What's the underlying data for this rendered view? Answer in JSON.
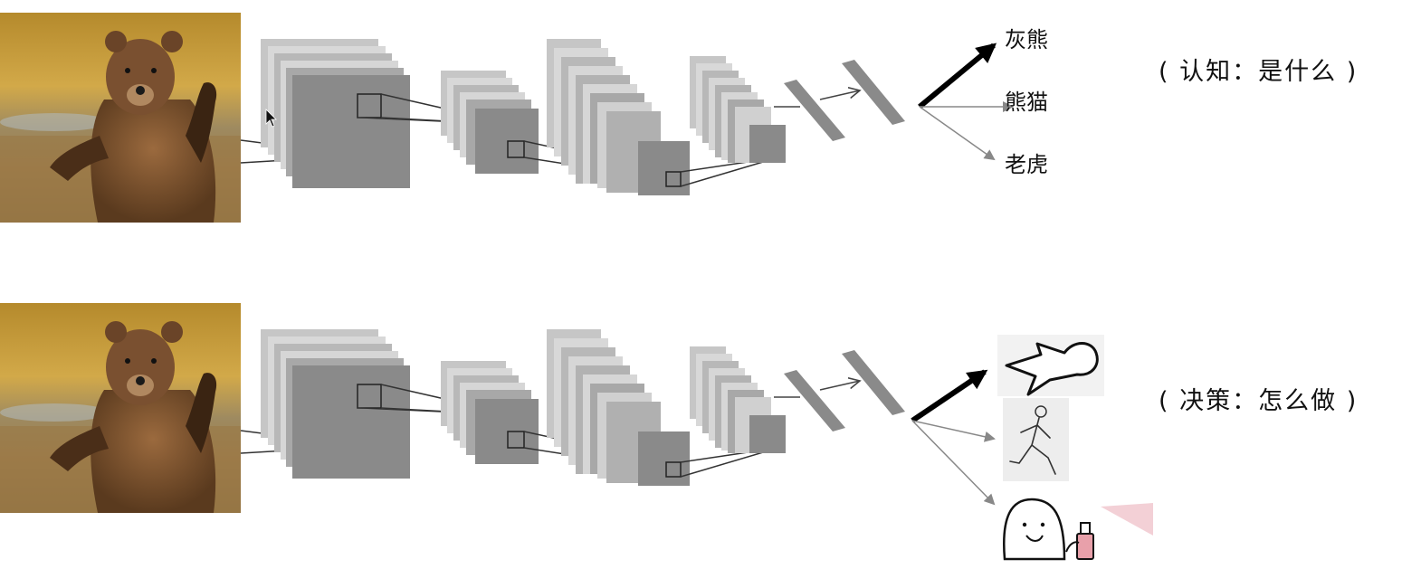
{
  "cognition": {
    "outputs": [
      "灰熊",
      "熊猫",
      "老虎"
    ],
    "caption": "( 认知：是什么 )"
  },
  "decision": {
    "actions": [
      "lie-down-icon",
      "run-icon",
      "spray-icon"
    ],
    "caption": "( 决策：怎么做 )"
  },
  "colors": {
    "layer": "#8a8a8a",
    "layer_back": "#c6c6c6",
    "layer_mid": "#a9a9a9",
    "line": "#333333",
    "arrow_gray": "#888888"
  }
}
